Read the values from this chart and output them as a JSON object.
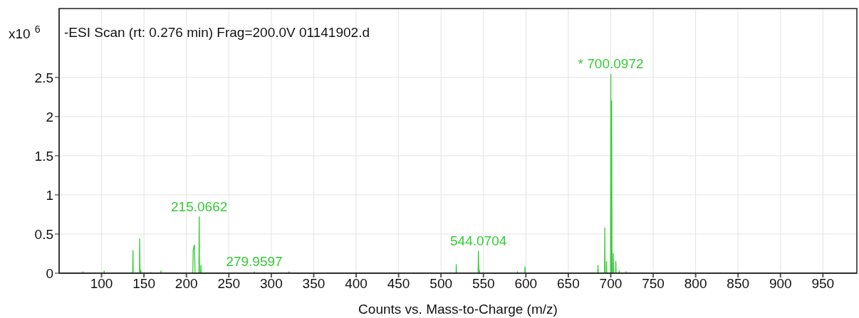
{
  "chart_data": {
    "type": "line",
    "title": "-ESI Scan (rt: 0.276 min) Frag=200.0V 01141902.d",
    "xlabel": "Counts vs. Mass-to-Charge (m/z)",
    "ylabel": "x10$^{6}$",
    "x": [
      70,
      77.7,
      78,
      78.3,
      102.7,
      103,
      103.3,
      136.7,
      137,
      137.3,
      144.7,
      145,
      145.3,
      146,
      146.3,
      146.6,
      157.7,
      158,
      158.3,
      169.7,
      170,
      170.3,
      207.5,
      208,
      209.5,
      210.2,
      214.7,
      215.0662,
      215.4,
      216.8,
      217.1,
      217.4,
      279.6,
      279.9597,
      280.3,
      320.7,
      321,
      321.3,
      517.7,
      518,
      518.3,
      543.7,
      544.0704,
      544.4,
      545,
      545.3,
      545.6,
      589.7,
      590,
      590.3,
      598.7,
      599,
      599.3,
      684.7,
      685,
      685.3,
      692.7,
      693,
      693.3,
      694.7,
      695,
      695.3,
      699.8,
      700.0972,
      700.5,
      701,
      701.5,
      702.7,
      703,
      703.3,
      705.7,
      706,
      706.3,
      709.7,
      710,
      710.3,
      717.7,
      718,
      718.3,
      990
    ],
    "values": [
      0,
      0,
      0.02,
      0,
      0,
      0.03,
      0,
      0,
      0.29,
      0,
      0,
      0.44,
      0,
      0,
      0.04,
      0,
      0,
      0.01,
      0,
      0,
      0.03,
      0,
      0,
      0.3,
      0.36,
      0,
      0,
      0.72,
      0,
      0,
      0.1,
      0,
      0,
      0.02,
      0,
      0,
      0.02,
      0,
      0,
      0.11,
      0,
      0,
      0.28,
      0.08,
      0,
      0.03,
      0,
      0,
      0.02,
      0,
      0,
      0.08,
      0,
      0,
      0.1,
      0,
      0,
      0.58,
      0,
      0,
      0.15,
      0,
      0,
      2.54,
      0,
      2.2,
      0,
      0,
      0.25,
      0,
      0,
      0.15,
      0,
      0,
      0.03,
      0,
      0,
      0.02,
      0,
      0
    ],
    "color": "#33cc33",
    "xlim": [
      50,
      990
    ],
    "xticks": [
      100,
      150,
      200,
      250,
      300,
      350,
      400,
      450,
      500,
      550,
      600,
      650,
      700,
      750,
      800,
      850,
      900,
      950
    ],
    "ylim": [
      0,
      3.38
    ],
    "yticks": [
      0,
      0.5,
      1,
      1.5,
      2,
      2.5
    ],
    "grid": true,
    "marker": "none",
    "line_style": "solid",
    "annotations": [
      {
        "text": "215.0662",
        "x": 215.0662,
        "y": 0.72
      },
      {
        "text": "279.9597",
        "x": 279.9597,
        "y": 0.02
      },
      {
        "text": "544.0704",
        "x": 544.0704,
        "y": 0.28
      },
      {
        "text": "* 700.0972",
        "x": 700.0972,
        "y": 2.54
      }
    ]
  }
}
